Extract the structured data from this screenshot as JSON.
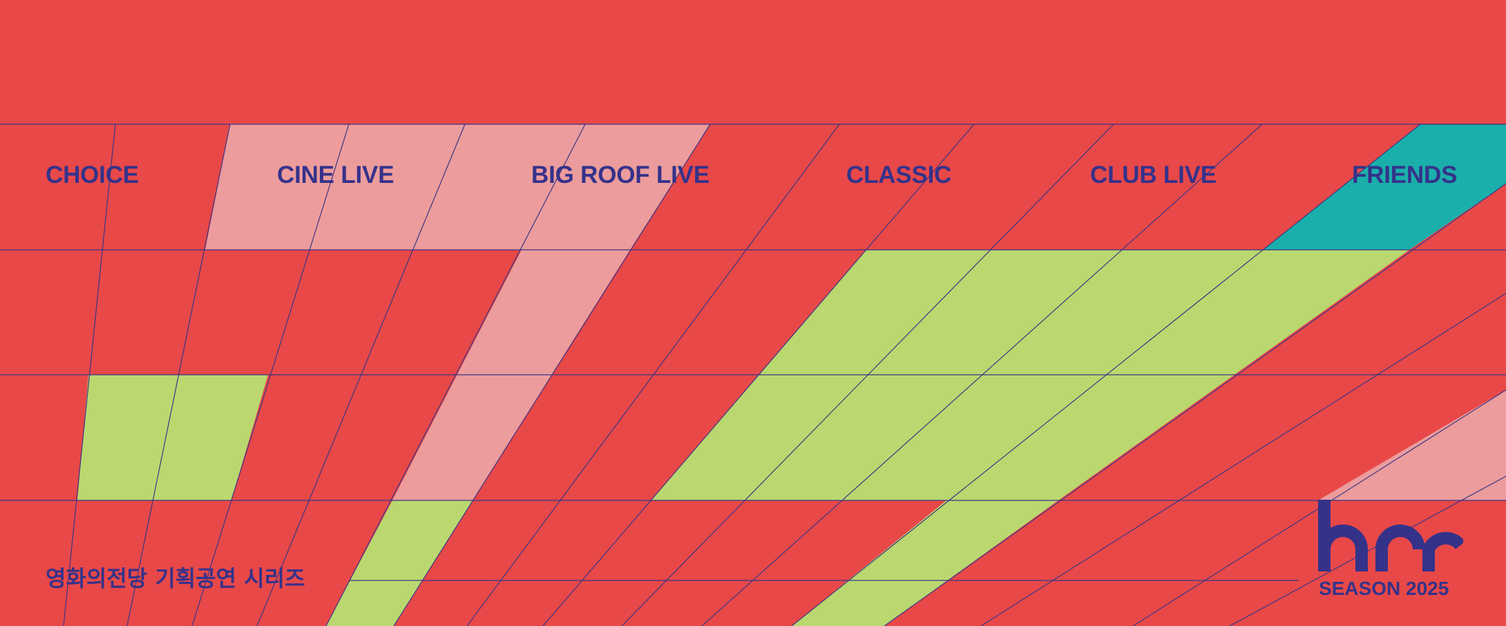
{
  "categories": [
    {
      "label": "CHOICE"
    },
    {
      "label": "CINE LIVE"
    },
    {
      "label": "BIG ROOF LIVE"
    },
    {
      "label": "CLASSIC"
    },
    {
      "label": "CLUB LIVE"
    },
    {
      "label": "FRIENDS"
    }
  ],
  "subtitle": "영화의전당 기획공연 시리즈",
  "brand": {
    "logo_icon": "hcc-logo-icon",
    "season_label": "SEASON 2025"
  },
  "colors": {
    "background": "#e84848",
    "line": "#3a3585",
    "text": "#35328a",
    "pink": "#ec9c9c",
    "green": "#bad86f",
    "teal": "#1aafab"
  }
}
